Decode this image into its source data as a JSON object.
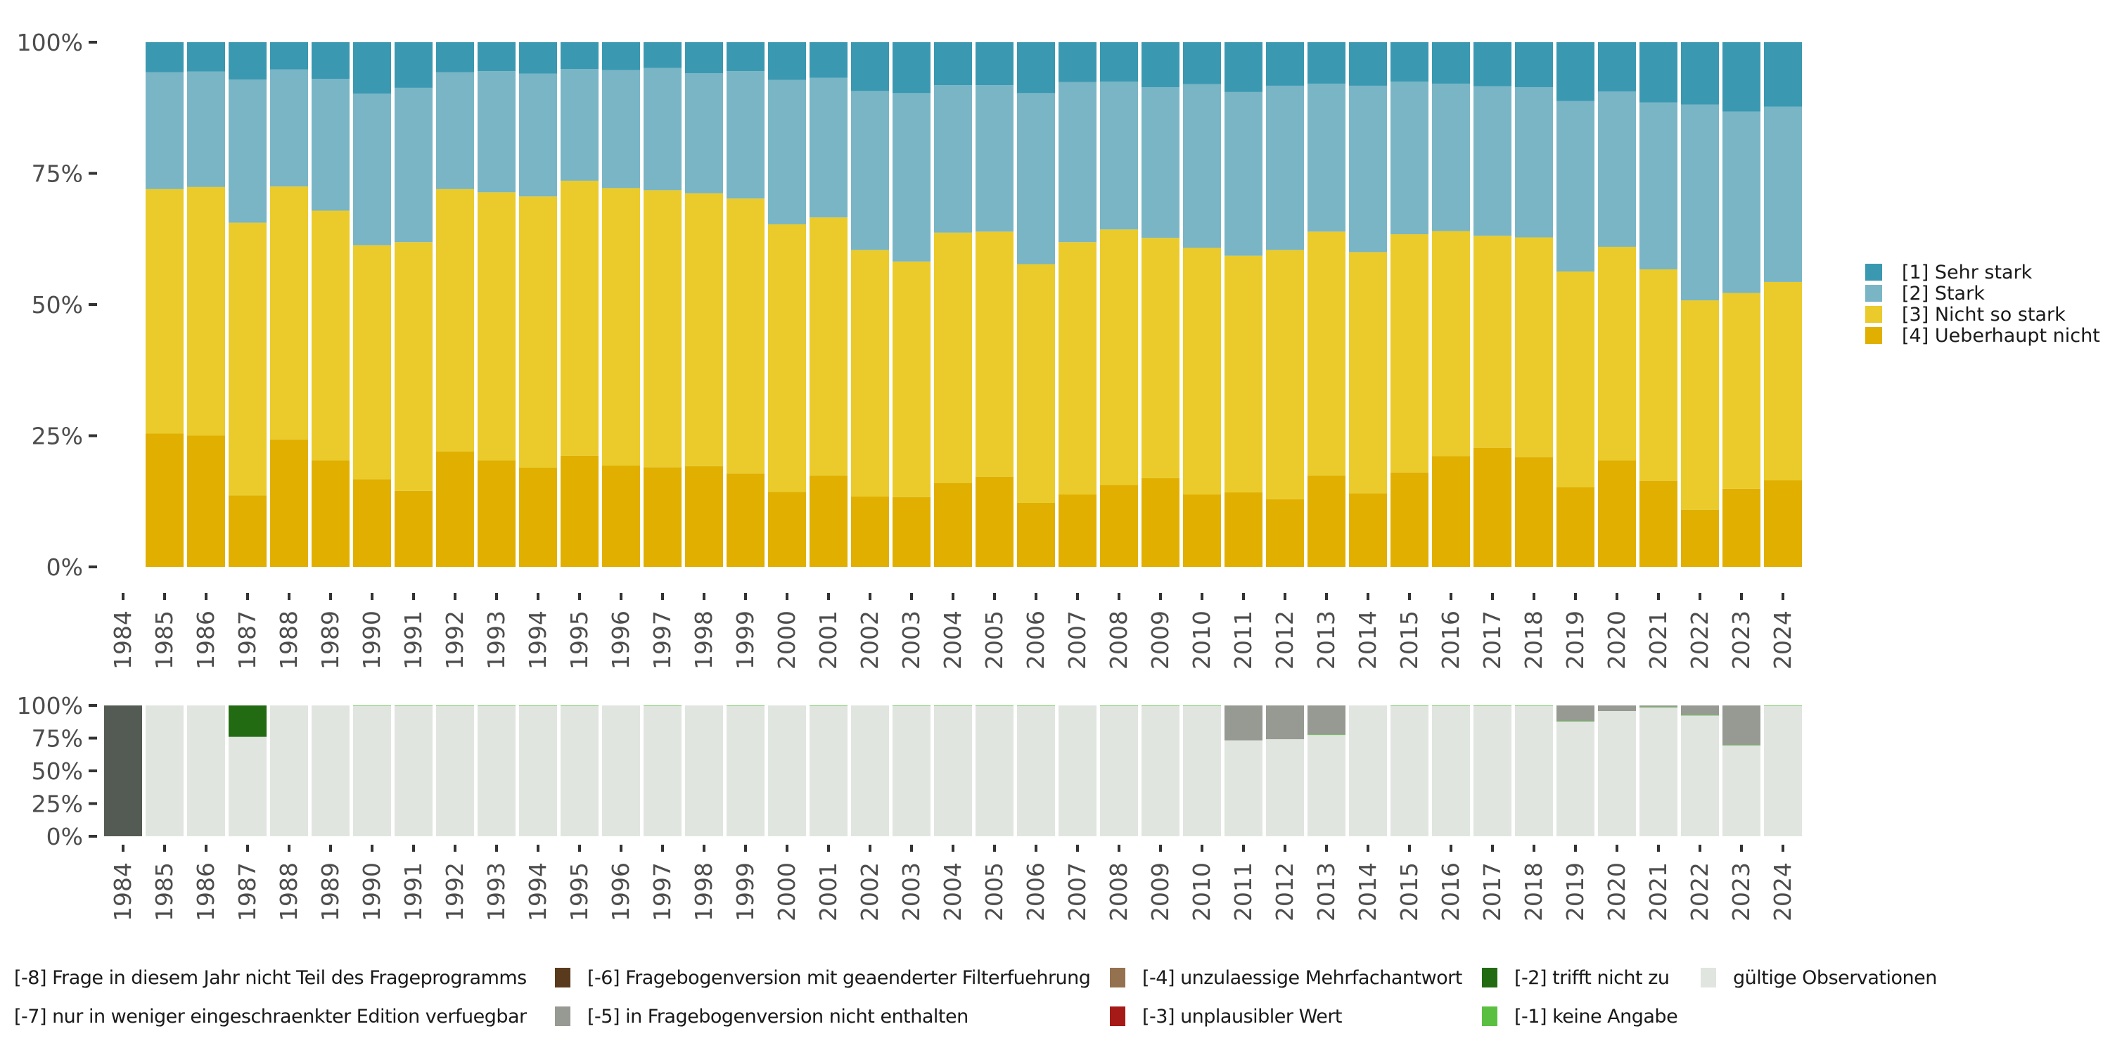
{
  "chart_data": [
    {
      "type": "bar",
      "stacked": true,
      "normalized": true,
      "title": "",
      "xlabel": "",
      "ylabel": "",
      "ylim": [
        0,
        100
      ],
      "yticks": [
        "0%",
        "25%",
        "50%",
        "75%",
        "100%"
      ],
      "grid": false,
      "legend_position": "right",
      "categories": [
        "1984",
        "1985",
        "1986",
        "1987",
        "1988",
        "1989",
        "1990",
        "1991",
        "1992",
        "1993",
        "1994",
        "1995",
        "1996",
        "1997",
        "1998",
        "1999",
        "2000",
        "2001",
        "2002",
        "2003",
        "2004",
        "2005",
        "2006",
        "2007",
        "2008",
        "2009",
        "2010",
        "2011",
        "2012",
        "2013",
        "2014",
        "2015",
        "2016",
        "2017",
        "2018",
        "2019",
        "2020",
        "2021",
        "2022",
        "2023",
        "2024"
      ],
      "series": [
        {
          "name": "[4] Ueberhaupt nicht",
          "color": "#e0af00",
          "values": [
            null,
            25.4,
            25.0,
            13.6,
            24.3,
            20.3,
            16.7,
            14.5,
            22.0,
            20.3,
            18.9,
            21.2,
            19.3,
            19.0,
            19.2,
            17.8,
            14.3,
            17.4,
            13.4,
            13.3,
            16.0,
            17.2,
            12.2,
            13.8,
            15.6,
            16.9,
            13.8,
            14.2,
            12.9,
            17.4,
            14.0,
            18.0,
            21.1,
            22.7,
            20.9,
            15.2,
            20.3,
            16.4,
            10.9,
            14.9,
            16.5
          ]
        },
        {
          "name": "[3] Nicht so stark",
          "color": "#eacb2b",
          "values": [
            null,
            46.6,
            47.4,
            52.0,
            48.2,
            47.6,
            44.6,
            47.4,
            50.0,
            51.1,
            51.7,
            52.4,
            52.9,
            52.8,
            52.0,
            52.4,
            51.0,
            49.2,
            47.0,
            44.9,
            47.7,
            46.7,
            45.5,
            48.1,
            48.7,
            45.8,
            47.0,
            45.1,
            47.5,
            46.5,
            46.0,
            45.4,
            42.9,
            40.4,
            41.9,
            41.1,
            40.7,
            40.3,
            39.9,
            37.3,
            37.8
          ]
        },
        {
          "name": "[2] Stark",
          "color": "#79b5c5",
          "values": [
            null,
            22.3,
            22.0,
            27.3,
            22.3,
            25.1,
            28.9,
            29.4,
            22.3,
            23.1,
            23.4,
            21.3,
            22.5,
            23.3,
            22.9,
            24.3,
            27.5,
            26.6,
            30.3,
            32.1,
            28.1,
            27.9,
            32.6,
            30.5,
            28.2,
            28.7,
            31.2,
            31.2,
            31.3,
            28.2,
            31.7,
            29.1,
            28.1,
            28.5,
            28.6,
            32.5,
            29.6,
            31.8,
            37.3,
            34.6,
            33.4
          ]
        },
        {
          "name": "[1] Sehr stark",
          "color": "#3b98b1",
          "values": [
            null,
            5.7,
            5.6,
            7.1,
            5.2,
            7.0,
            9.8,
            8.7,
            5.7,
            5.5,
            6.0,
            5.1,
            5.3,
            4.9,
            5.9,
            5.5,
            7.2,
            6.8,
            9.3,
            9.7,
            8.2,
            8.2,
            9.7,
            7.6,
            7.5,
            8.6,
            8.0,
            9.5,
            8.3,
            7.9,
            8.3,
            7.5,
            7.9,
            8.4,
            8.6,
            11.2,
            9.4,
            11.5,
            11.9,
            13.2,
            12.3
          ]
        }
      ],
      "legend": [
        "[1] Sehr stark",
        "[2] Stark",
        "[3] Nicht so stark",
        "[4] Ueberhaupt nicht"
      ]
    },
    {
      "type": "bar",
      "stacked": true,
      "normalized": true,
      "title": "",
      "xlabel": "",
      "ylabel": "",
      "ylim": [
        0,
        100
      ],
      "yticks": [
        "0%",
        "25%",
        "50%",
        "75%",
        "100%"
      ],
      "grid": false,
      "legend_position": "bottom",
      "categories": [
        "1984",
        "1985",
        "1986",
        "1987",
        "1988",
        "1989",
        "1990",
        "1991",
        "1992",
        "1993",
        "1994",
        "1995",
        "1996",
        "1997",
        "1998",
        "1999",
        "2000",
        "2001",
        "2002",
        "2003",
        "2004",
        "2005",
        "2006",
        "2007",
        "2008",
        "2009",
        "2010",
        "2011",
        "2012",
        "2013",
        "2014",
        "2015",
        "2016",
        "2017",
        "2018",
        "2019",
        "2020",
        "2021",
        "2022",
        "2023",
        "2024"
      ],
      "series": [
        {
          "name": "gültige Observationen",
          "color": "#e0e5e0",
          "values": [
            0,
            100,
            100,
            76.0,
            100,
            100,
            99.6,
            99.6,
            99.6,
            99.6,
            99.6,
            99.6,
            100,
            99.6,
            100,
            99.6,
            100,
            99.6,
            100,
            99.6,
            99.6,
            99.6,
            99.6,
            100,
            99.6,
            99.6,
            99.6,
            73.3,
            74.2,
            77.4,
            100,
            99.6,
            99.6,
            99.6,
            99.6,
            87.7,
            95.7,
            98.4,
            92.3,
            69.4,
            99.6
          ]
        },
        {
          "name": "[-1] keine Angabe",
          "color": "#5bbf41",
          "values": [
            0,
            0,
            0,
            0,
            0,
            0,
            0.4,
            0.4,
            0.4,
            0.4,
            0.4,
            0.4,
            0,
            0.4,
            0,
            0.4,
            0,
            0.4,
            0,
            0.4,
            0.4,
            0.4,
            0.4,
            0,
            0.4,
            0.4,
            0.4,
            0,
            0,
            0.4,
            0,
            0.4,
            0.4,
            0.4,
            0.4,
            0.4,
            0,
            0.4,
            0.4,
            0.4,
            0.4
          ]
        },
        {
          "name": "[-2] trifft nicht zu",
          "color": "#226b12",
          "values": [
            0,
            0,
            0,
            24.0,
            0,
            0,
            0,
            0,
            0,
            0,
            0,
            0,
            0,
            0,
            0,
            0,
            0,
            0,
            0,
            0,
            0,
            0,
            0,
            0,
            0,
            0,
            0,
            0,
            0,
            0,
            0,
            0,
            0,
            0,
            0,
            0,
            0,
            0,
            0,
            0,
            0
          ]
        },
        {
          "name": "[-5] in Fragebogenversion nicht enthalten",
          "color": "#969a92",
          "values": [
            0,
            0,
            0,
            0,
            0,
            0,
            0,
            0,
            0,
            0,
            0,
            0,
            0,
            0,
            0,
            0,
            0,
            0,
            0,
            0,
            0,
            0,
            0,
            0,
            0,
            0,
            0,
            26.7,
            25.8,
            22.2,
            0,
            0,
            0,
            0,
            0,
            11.9,
            4.3,
            1.2,
            7.3,
            30.2,
            0
          ]
        },
        {
          "name": "[-8] Frage in diesem Jahr nicht Teil des Frageprogramms",
          "color": "#545b54",
          "values": [
            100,
            0,
            0,
            0,
            0,
            0,
            0,
            0,
            0,
            0,
            0,
            0,
            0,
            0,
            0,
            0,
            0,
            0,
            0,
            0,
            0,
            0,
            0,
            0,
            0,
            0,
            0,
            0,
            0,
            0,
            0,
            0,
            0,
            0,
            0,
            0,
            0,
            0,
            0,
            0,
            0
          ]
        }
      ],
      "legend": [
        {
          "label": "[-8] Frage in diesem Jahr nicht Teil des Frageprogramms",
          "color": "#545b54"
        },
        {
          "label": "[-7] nur in weniger eingeschraenkter Edition verfuegbar",
          "color": "#545b54"
        },
        {
          "label": "[-6] Fragebogenversion mit geaenderter Filterfuehrung",
          "color": "#5a3a1c"
        },
        {
          "label": "[-5] in Fragebogenversion nicht enthalten",
          "color": "#969a92"
        },
        {
          "label": "[-4] unzulaessige Mehrfachantwort",
          "color": "#94714f"
        },
        {
          "label": "[-3] unplausibler Wert",
          "color": "#a51a17"
        },
        {
          "label": "[-2] trifft nicht zu",
          "color": "#226b12"
        },
        {
          "label": "[-1] keine Angabe",
          "color": "#5bbf41"
        },
        {
          "label": "gültige Observationen",
          "color": "#e0e5e0"
        }
      ]
    }
  ]
}
